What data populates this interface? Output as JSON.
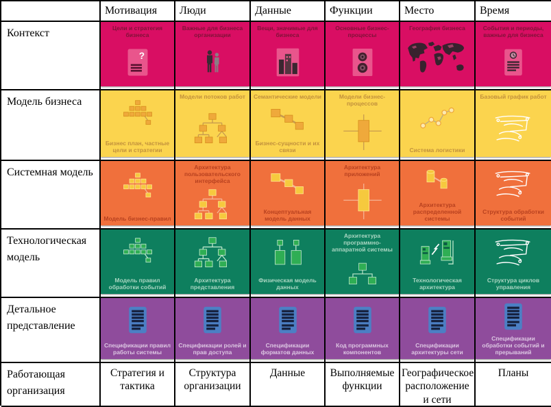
{
  "table": {
    "corner": "",
    "columns": [
      "Мотивация",
      "Люди",
      "Данные",
      "Функции",
      "Место",
      "Время"
    ],
    "rows": [
      {
        "label": "Контекст",
        "color": "#D90E63",
        "cells": [
          {
            "top": "Цели и стратегия бизнеса",
            "icon": "doc-question"
          },
          {
            "top": "Важные для бизнеса организации",
            "icon": "people"
          },
          {
            "top": "Вещи, значимые для бизнеса",
            "icon": "buildings"
          },
          {
            "top": "Основные бизнес-процессы",
            "icon": "gears"
          },
          {
            "top": "География бизнеса",
            "icon": "world-map"
          },
          {
            "top": "События и периоды, важные для бизнеса",
            "icon": "doc-clock"
          }
        ]
      },
      {
        "label": "Модель бизнеса",
        "color": "#FBD44E",
        "cells": [
          {
            "bottom": "Бизнес план, частные цели и стратегии",
            "icon": "pyramid"
          },
          {
            "top": "Модели потоков работ",
            "icon": "workflow"
          },
          {
            "top": "Семантические модели",
            "bottom": "Бизнес-сущности и их связи",
            "icon": "linked-boxes"
          },
          {
            "top": "Модели бизнес-процессов",
            "icon": "process-rect"
          },
          {
            "bottom": "Система логистики",
            "icon": "nodes"
          },
          {
            "top": "Базовый график работ",
            "icon": "sketch"
          }
        ]
      },
      {
        "label": "Системная модель",
        "color": "#F0703C",
        "cells": [
          {
            "bottom": "Модель бизнес-правил",
            "icon": "pyramid"
          },
          {
            "top": "Архитектура пользовательского интерфейса",
            "icon": "workflow"
          },
          {
            "bottom": "Концептуальная модель данных",
            "icon": "linked-boxes"
          },
          {
            "top": "Архитектура приложений",
            "icon": "process-rect"
          },
          {
            "bottom": "Архитектура распределенной системы",
            "icon": "cylinders"
          },
          {
            "bottom": "Структура обработки событий",
            "icon": "sketch"
          }
        ]
      },
      {
        "label": "Технологическая модель",
        "color": "#0E7F5E",
        "cells": [
          {
            "bottom": "Модель правил обработки событий",
            "icon": "pyramid"
          },
          {
            "bottom": "Архитектура представления",
            "icon": "workflow"
          },
          {
            "bottom": "Физическая модель данных",
            "icon": "data-blocks"
          },
          {
            "top": "Архитектура программно-аппаратной системы",
            "icon": "small-tree"
          },
          {
            "bottom": "Технологическая архитектура",
            "icon": "computers"
          },
          {
            "bottom": "Структура циклов управления",
            "icon": "sketch"
          }
        ]
      },
      {
        "label": "Детальное представление",
        "color": "#8F4C9C",
        "cells": [
          {
            "bottom": "Спецификации правил работы системы",
            "icon": "doc-blue"
          },
          {
            "bottom": "Спецификации ролей и прав доступа",
            "icon": "doc-blue"
          },
          {
            "bottom": "Спецификации форматов данных",
            "icon": "doc-blue"
          },
          {
            "bottom": "Код программных компонентов",
            "icon": "doc-blue"
          },
          {
            "bottom": "Спецификации архитектуры сети",
            "icon": "doc-blue"
          },
          {
            "bottom": "Спецификации обработки событий и прерываний",
            "icon": "doc-blue"
          }
        ]
      }
    ],
    "footer": {
      "label": "Работающая организация",
      "cells": [
        "Стратегия и тактика",
        "Структура организации",
        "Данные",
        "Выполняемые функции",
        "Географическое расположение и сети",
        "Планы"
      ]
    }
  }
}
